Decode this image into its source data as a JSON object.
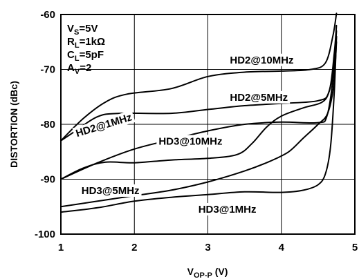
{
  "chart_data": {
    "type": "line",
    "xlabel": "V",
    "xlabel_sub": "OP-P",
    "xlabel_unit": " (V)",
    "ylabel": "DISTORTION (dBc)",
    "xlim": [
      1,
      5
    ],
    "ylim": [
      -100,
      -60
    ],
    "x_ticks": [
      "1",
      "2",
      "3",
      "4",
      "5"
    ],
    "y_ticks": [
      "-60",
      "-70",
      "-80",
      "-90",
      "-100"
    ],
    "grid": true,
    "conditions": [
      {
        "main": "V",
        "sub": "S",
        "rest": "=5V"
      },
      {
        "main": "R",
        "sub": "L",
        "rest": "=1kΩ"
      },
      {
        "main": "C",
        "sub": "L",
        "rest": "=5pF"
      },
      {
        "main": "A",
        "sub": "V",
        "rest": "=2"
      }
    ],
    "series": [
      {
        "name": "HD2@10MHz",
        "label_at": [
          3.3,
          -68.9
        ],
        "points": [
          [
            1,
            -83
          ],
          [
            1.3,
            -79
          ],
          [
            1.6,
            -76
          ],
          [
            1.9,
            -74.5
          ],
          [
            2.5,
            -73.5
          ],
          [
            3,
            -71.3
          ],
          [
            3.5,
            -70.5
          ],
          [
            4,
            -70.3
          ],
          [
            4.4,
            -70
          ],
          [
            4.6,
            -68.8
          ],
          [
            4.7,
            -64
          ],
          [
            4.75,
            -59.8
          ]
        ]
      },
      {
        "name": "HD2@5MHz",
        "label_at": [
          3.3,
          -75.7
        ],
        "points": [
          [
            1,
            -83
          ],
          [
            1.2,
            -81.2
          ],
          [
            1.5,
            -78.6
          ],
          [
            1.8,
            -78
          ],
          [
            2.5,
            -78
          ],
          [
            3,
            -77.3
          ],
          [
            3.5,
            -76.6
          ],
          [
            4,
            -76.2
          ],
          [
            4.5,
            -75.7
          ],
          [
            4.65,
            -74
          ],
          [
            4.72,
            -67
          ],
          [
            4.75,
            -62
          ]
        ]
      },
      {
        "name": "HD2@1MHz",
        "label_at": [
          1.22,
          -82.3
        ],
        "label_rotate": -17,
        "points": [
          [
            1,
            -90
          ],
          [
            1.5,
            -87
          ],
          [
            2,
            -84.5
          ],
          [
            2.5,
            -82.8
          ],
          [
            3,
            -81.2
          ],
          [
            3.5,
            -80
          ],
          [
            4,
            -79.6
          ],
          [
            4.5,
            -79.7
          ],
          [
            4.62,
            -78.5
          ],
          [
            4.7,
            -72
          ],
          [
            4.75,
            -63
          ]
        ]
      },
      {
        "name": "HD3@10MHz",
        "label_at": [
          2.33,
          -83.7
        ],
        "points": [
          [
            1,
            -90
          ],
          [
            1.3,
            -88
          ],
          [
            1.6,
            -86.9
          ],
          [
            2,
            -87
          ],
          [
            2.5,
            -86.5
          ],
          [
            3,
            -86.2
          ],
          [
            3.4,
            -85.5
          ],
          [
            3.6,
            -83.5
          ],
          [
            3.8,
            -80.5
          ],
          [
            4,
            -78.5
          ],
          [
            4.3,
            -77
          ],
          [
            4.55,
            -76
          ],
          [
            4.65,
            -74
          ],
          [
            4.72,
            -69
          ],
          [
            4.75,
            -64
          ]
        ]
      },
      {
        "name": "HD3@5MHz",
        "label_at": [
          1.28,
          -92.7
        ],
        "points": [
          [
            1,
            -95
          ],
          [
            1.5,
            -94
          ],
          [
            2,
            -93
          ],
          [
            2.5,
            -92
          ],
          [
            3,
            -90.5
          ],
          [
            3.5,
            -88.5
          ],
          [
            3.85,
            -86.7
          ],
          [
            4.1,
            -85
          ],
          [
            4.3,
            -82.5
          ],
          [
            4.5,
            -80
          ],
          [
            4.63,
            -78
          ],
          [
            4.71,
            -73
          ],
          [
            4.75,
            -65
          ]
        ]
      },
      {
        "name": "HD3@1MHz",
        "label_at": [
          2.87,
          -96.1
        ],
        "points": [
          [
            1,
            -96
          ],
          [
            1.5,
            -95.2
          ],
          [
            2,
            -94
          ],
          [
            2.5,
            -93.3
          ],
          [
            3,
            -92.8
          ],
          [
            3.5,
            -92.3
          ],
          [
            4,
            -92.4
          ],
          [
            4.3,
            -92
          ],
          [
            4.5,
            -91
          ],
          [
            4.6,
            -89
          ],
          [
            4.67,
            -84
          ],
          [
            4.72,
            -74
          ],
          [
            4.75,
            -64
          ]
        ]
      }
    ]
  }
}
